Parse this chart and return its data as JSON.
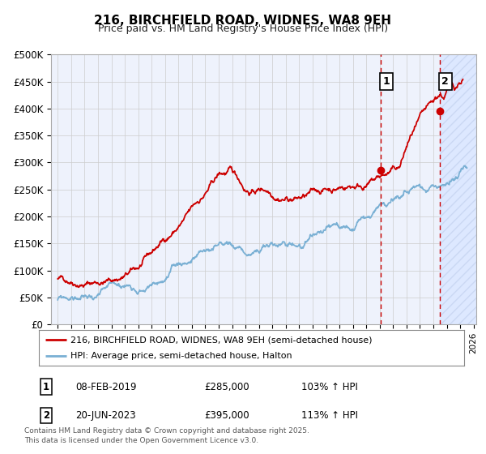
{
  "title": "216, BIRCHFIELD ROAD, WIDNES, WA8 9EH",
  "subtitle": "Price paid vs. HM Land Registry's House Price Index (HPI)",
  "ylim": [
    0,
    500000
  ],
  "yticks": [
    0,
    50000,
    100000,
    150000,
    200000,
    250000,
    300000,
    350000,
    400000,
    450000,
    500000
  ],
  "ytick_labels": [
    "£0",
    "£50K",
    "£100K",
    "£150K",
    "£200K",
    "£250K",
    "£300K",
    "£350K",
    "£400K",
    "£450K",
    "£500K"
  ],
  "xlim_start": 1994.5,
  "xlim_end": 2026.2,
  "vline1_x": 2019.1,
  "vline2_x": 2023.47,
  "shade_start": 2023.47,
  "background_color": "#ffffff",
  "plot_bg_color": "#eef2fc",
  "grid_color": "#cccccc",
  "red_line_color": "#cc0000",
  "blue_line_color": "#7ab0d4",
  "vline_color": "#cc0000",
  "shade_color": "#dde8ff",
  "legend_label_red": "216, BIRCHFIELD ROAD, WIDNES, WA8 9EH (semi-detached house)",
  "legend_label_blue": "HPI: Average price, semi-detached house, Halton",
  "annotation1_num": "1",
  "annotation1_date": "08-FEB-2019",
  "annotation1_price": "£285,000",
  "annotation1_hpi": "103% ↑ HPI",
  "annotation2_num": "2",
  "annotation2_date": "20-JUN-2023",
  "annotation2_price": "£395,000",
  "annotation2_hpi": "113% ↑ HPI",
  "footer": "Contains HM Land Registry data © Crown copyright and database right 2025.\nThis data is licensed under the Open Government Licence v3.0.",
  "marker1_x": 2019.1,
  "marker1_y": 285000,
  "marker2_x": 2023.47,
  "marker2_y": 395000
}
